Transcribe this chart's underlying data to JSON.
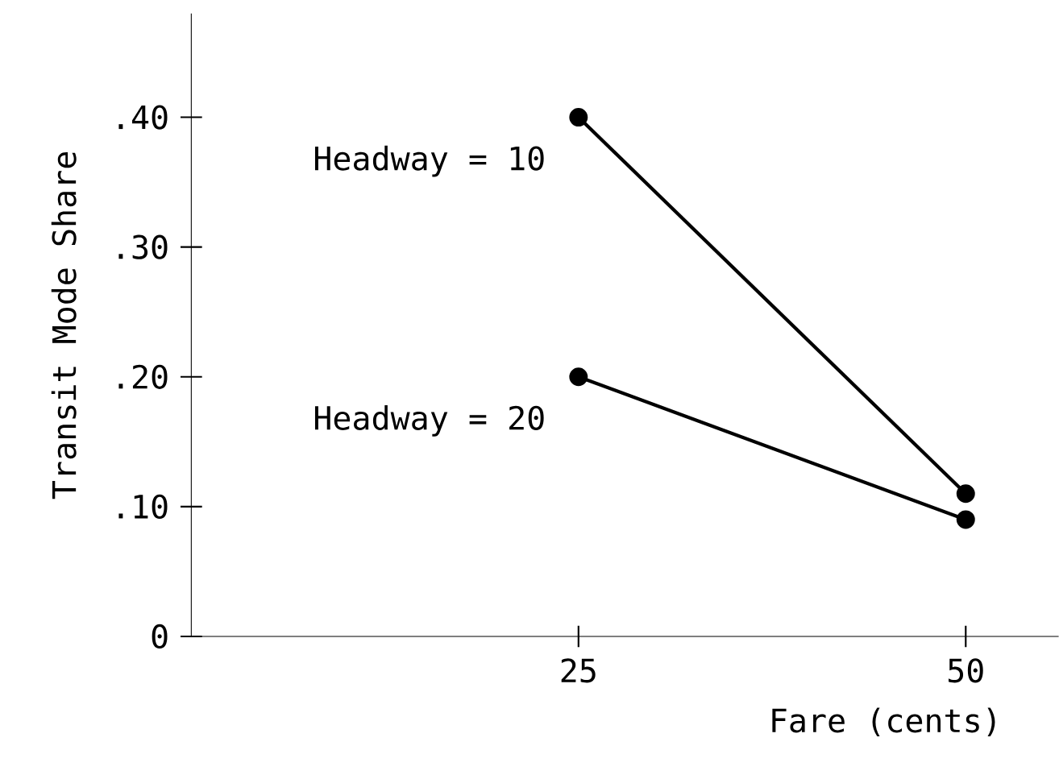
{
  "chart_data": {
    "type": "line",
    "xlabel": "Fare (cents)",
    "ylabel": "Transit Mode Share",
    "x": [
      25,
      50
    ],
    "series": [
      {
        "name": "Headway = 10",
        "color": "#000000",
        "values": [
          0.4,
          0.11
        ]
      },
      {
        "name": "Headway = 20",
        "color": "#000000",
        "values": [
          0.2,
          0.09
        ]
      }
    ],
    "xlim": [
      0,
      56
    ],
    "ylim": [
      0,
      0.48
    ],
    "xticks": [
      25,
      50
    ],
    "yticks": [
      0,
      {
        "value": 0.1,
        "label": ".10"
      },
      {
        "value": 0.2,
        "label": ".20"
      },
      {
        "value": 0.3,
        "label": ".30"
      },
      {
        "value": 0.4,
        "label": ".40"
      }
    ],
    "grid": false,
    "legend": false,
    "marker": "circle",
    "line_style": "solid"
  }
}
